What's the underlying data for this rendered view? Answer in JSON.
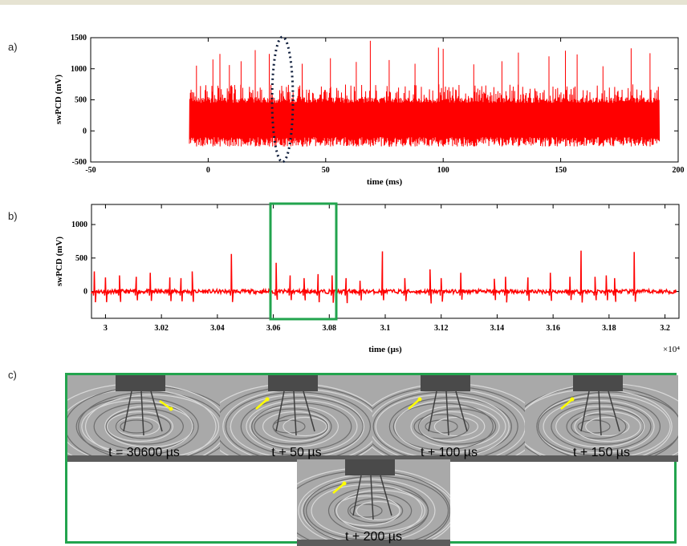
{
  "panels": {
    "a": "a)",
    "b": "b)",
    "c": "c)"
  },
  "chart_data": [
    {
      "type": "line",
      "panel": "a",
      "xlabel": "time (ms)",
      "ylabel": "swPCD (mV)",
      "xlim": [
        -50,
        200
      ],
      "ylim": [
        -500,
        1500
      ],
      "xticks": [
        -50,
        0,
        50,
        100,
        150,
        200
      ],
      "yticks": [
        -500,
        0,
        500,
        1000,
        1500
      ],
      "series": [
        {
          "color": "#ff0000",
          "description_x_range": [
            -8,
            192
          ],
          "baseline": 100,
          "noise_band": [
            -250,
            450
          ],
          "peak_values": [
            [
              -5,
              1050
            ],
            [
              2,
              1150
            ],
            [
              5,
              1240
            ],
            [
              9,
              1060
            ],
            [
              14,
              1120
            ],
            [
              20,
              1300
            ],
            [
              26,
              1240
            ],
            [
              40,
              1080
            ],
            [
              52,
              1170
            ],
            [
              63,
              1110
            ],
            [
              69,
              1450
            ],
            [
              77,
              1140
            ],
            [
              88,
              1080
            ],
            [
              98,
              1340
            ],
            [
              100,
              1320
            ],
            [
              113,
              1070
            ],
            [
              125,
              1120
            ],
            [
              132,
              1260
            ],
            [
              145,
              1200
            ],
            [
              152,
              1290
            ],
            [
              157,
              1230
            ],
            [
              168,
              1040
            ],
            [
              180,
              1330
            ],
            [
              188,
              1250
            ]
          ]
        }
      ],
      "annotation": "dotted ellipse near 32 ms"
    },
    {
      "type": "line",
      "panel": "b",
      "xlabel": "time (µs)",
      "ylabel": "swPCD (mV)",
      "xlim": [
        2.995,
        3.205
      ],
      "ylim": [
        -400,
        1300
      ],
      "xticks": [
        3,
        3.02,
        3.04,
        3.06,
        3.08,
        3.1,
        3.12,
        3.14,
        3.16,
        3.18,
        3.2
      ],
      "xtick_labels": [
        "3",
        "3.02",
        "3.04",
        "3.06",
        "3.08",
        "3.1",
        "3.12",
        "3.14",
        "3.16",
        "3.18",
        "3.2"
      ],
      "yticks": [
        0,
        500,
        1000
      ],
      "x_multiplier": "×10⁴",
      "spikes": [
        [
          2.996,
          300
        ],
        [
          3.0,
          210
        ],
        [
          3.005,
          240
        ],
        [
          3.011,
          220
        ],
        [
          3.016,
          280
        ],
        [
          3.023,
          210
        ],
        [
          3.027,
          200
        ],
        [
          3.031,
          300
        ],
        [
          3.045,
          560
        ],
        [
          3.061,
          430
        ],
        [
          3.066,
          240
        ],
        [
          3.071,
          200
        ],
        [
          3.076,
          260
        ],
        [
          3.081,
          240
        ],
        [
          3.086,
          200
        ],
        [
          3.091,
          160
        ],
        [
          3.099,
          600
        ],
        [
          3.107,
          200
        ],
        [
          3.116,
          330
        ],
        [
          3.12,
          200
        ],
        [
          3.127,
          280
        ],
        [
          3.139,
          190
        ],
        [
          3.143,
          220
        ],
        [
          3.151,
          210
        ],
        [
          3.159,
          280
        ],
        [
          3.166,
          220
        ],
        [
          3.17,
          610
        ],
        [
          3.175,
          220
        ],
        [
          3.179,
          240
        ],
        [
          3.182,
          200
        ],
        [
          3.189,
          590
        ]
      ],
      "annotation": "green box from 3.06 to 3.082"
    }
  ],
  "frames": [
    {
      "label": "t = 30600 µs"
    },
    {
      "label": "t + 50 µs"
    },
    {
      "label": "t + 100 µs"
    },
    {
      "label": "t + 150 µs"
    },
    {
      "label": "t + 200 µs"
    }
  ],
  "colors": {
    "signal": "#ff0000",
    "box": "#22a44e",
    "arrow": "#ffff00"
  }
}
